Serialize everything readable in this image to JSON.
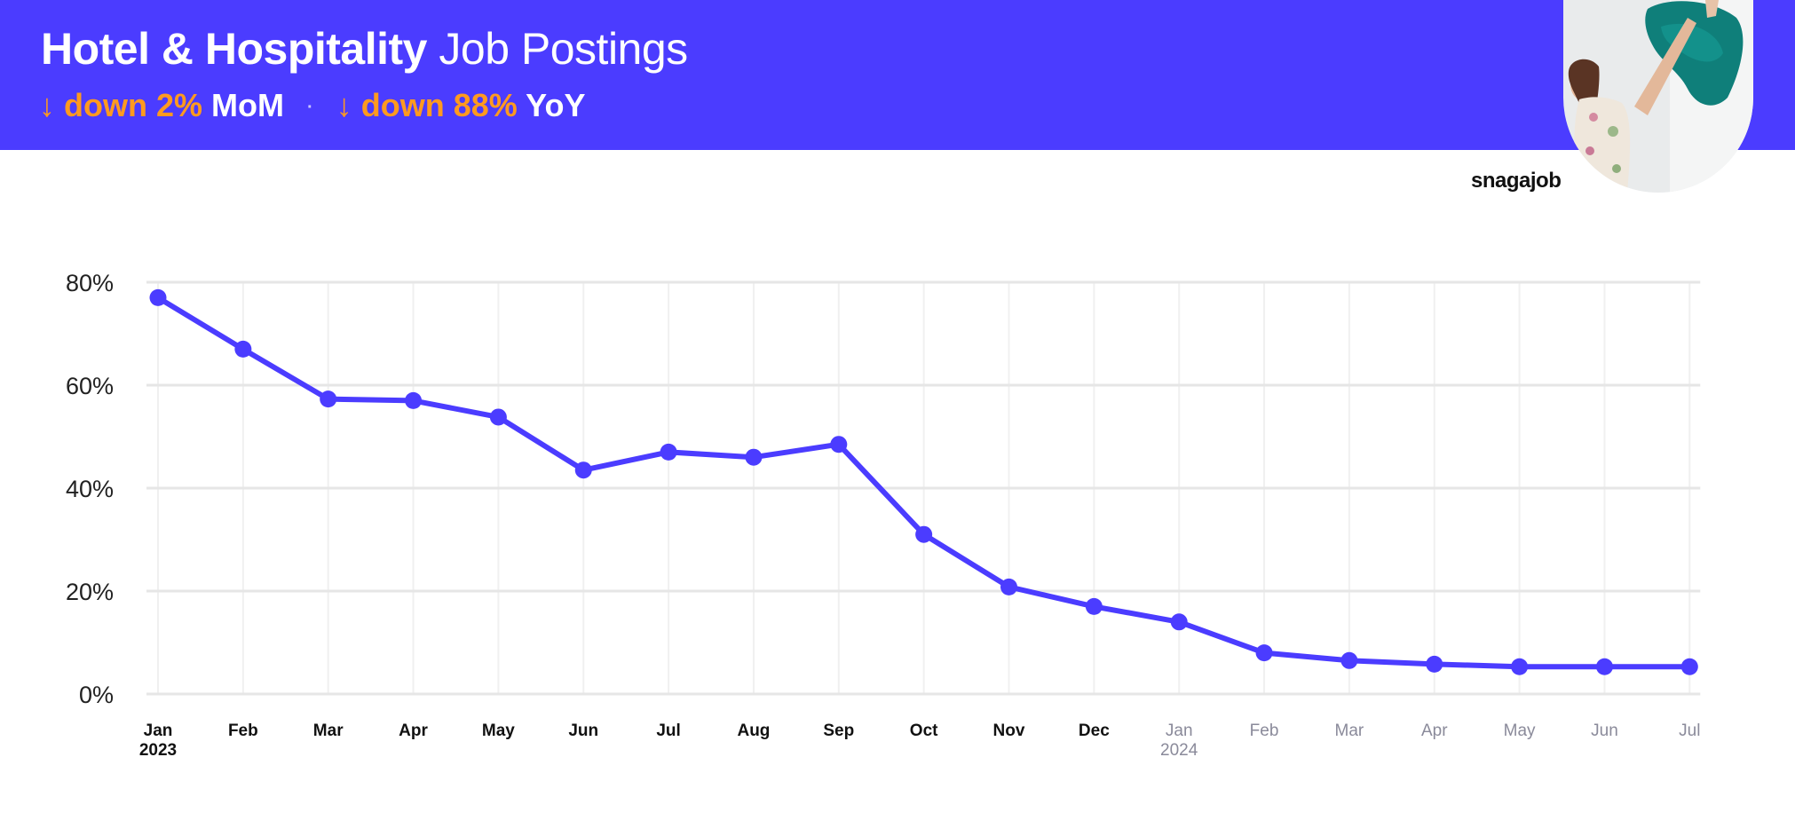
{
  "header": {
    "title_bold": "Hotel & Hospitality",
    "title_light": "Job Postings",
    "mom_arrow": "↓",
    "mom_change": "down 2%",
    "mom_label": "MoM",
    "separator": "·",
    "yoy_arrow": "↓",
    "yoy_change": "down 88%",
    "yoy_label": "YoY"
  },
  "brand": {
    "logo_text": "snagajob"
  },
  "colors": {
    "banner": "#4b3cff",
    "line": "#4b3cff",
    "highlight": "#ff9a1f",
    "grid": "#e6e6e6",
    "tick_current": "#111111",
    "tick_future": "#8a8a9a"
  },
  "chart_data": {
    "type": "line",
    "title": "Hotel & Hospitality Job Postings",
    "xlabel": "",
    "ylabel": "",
    "x": [
      "Jan 2023",
      "Feb 2023",
      "Mar 2023",
      "Apr 2023",
      "May 2023",
      "Jun 2023",
      "Jul 2023",
      "Aug 2023",
      "Sep 2023",
      "Oct 2023",
      "Nov 2023",
      "Dec 2023",
      "Jan 2024",
      "Feb 2024",
      "Mar 2024",
      "Apr 2024",
      "May 2024",
      "Jun 2024",
      "Jul 2024"
    ],
    "tick_labels": [
      "Jan",
      "Feb",
      "Mar",
      "Apr",
      "May",
      "Jun",
      "Jul",
      "Aug",
      "Sep",
      "Oct",
      "Nov",
      "Dec",
      "Jan",
      "Feb",
      "Mar",
      "Apr",
      "May",
      "Jun",
      "Jul"
    ],
    "year_labels": [
      {
        "index": 0,
        "label": "2023"
      },
      {
        "index": 12,
        "label": "2024"
      }
    ],
    "values": [
      77,
      67,
      57.3,
      57,
      53.8,
      43.5,
      47,
      46,
      48.5,
      31,
      20.8,
      17,
      14,
      8,
      6.5,
      5.8,
      5.3,
      5.3,
      5.3
    ],
    "muted_from_index": 12,
    "yticks": [
      0,
      20,
      40,
      60,
      80
    ],
    "ytick_labels": [
      "0%",
      "20%",
      "40%",
      "60%",
      "80%"
    ],
    "ylim": [
      0,
      80
    ],
    "grid": true,
    "legend": "none"
  }
}
